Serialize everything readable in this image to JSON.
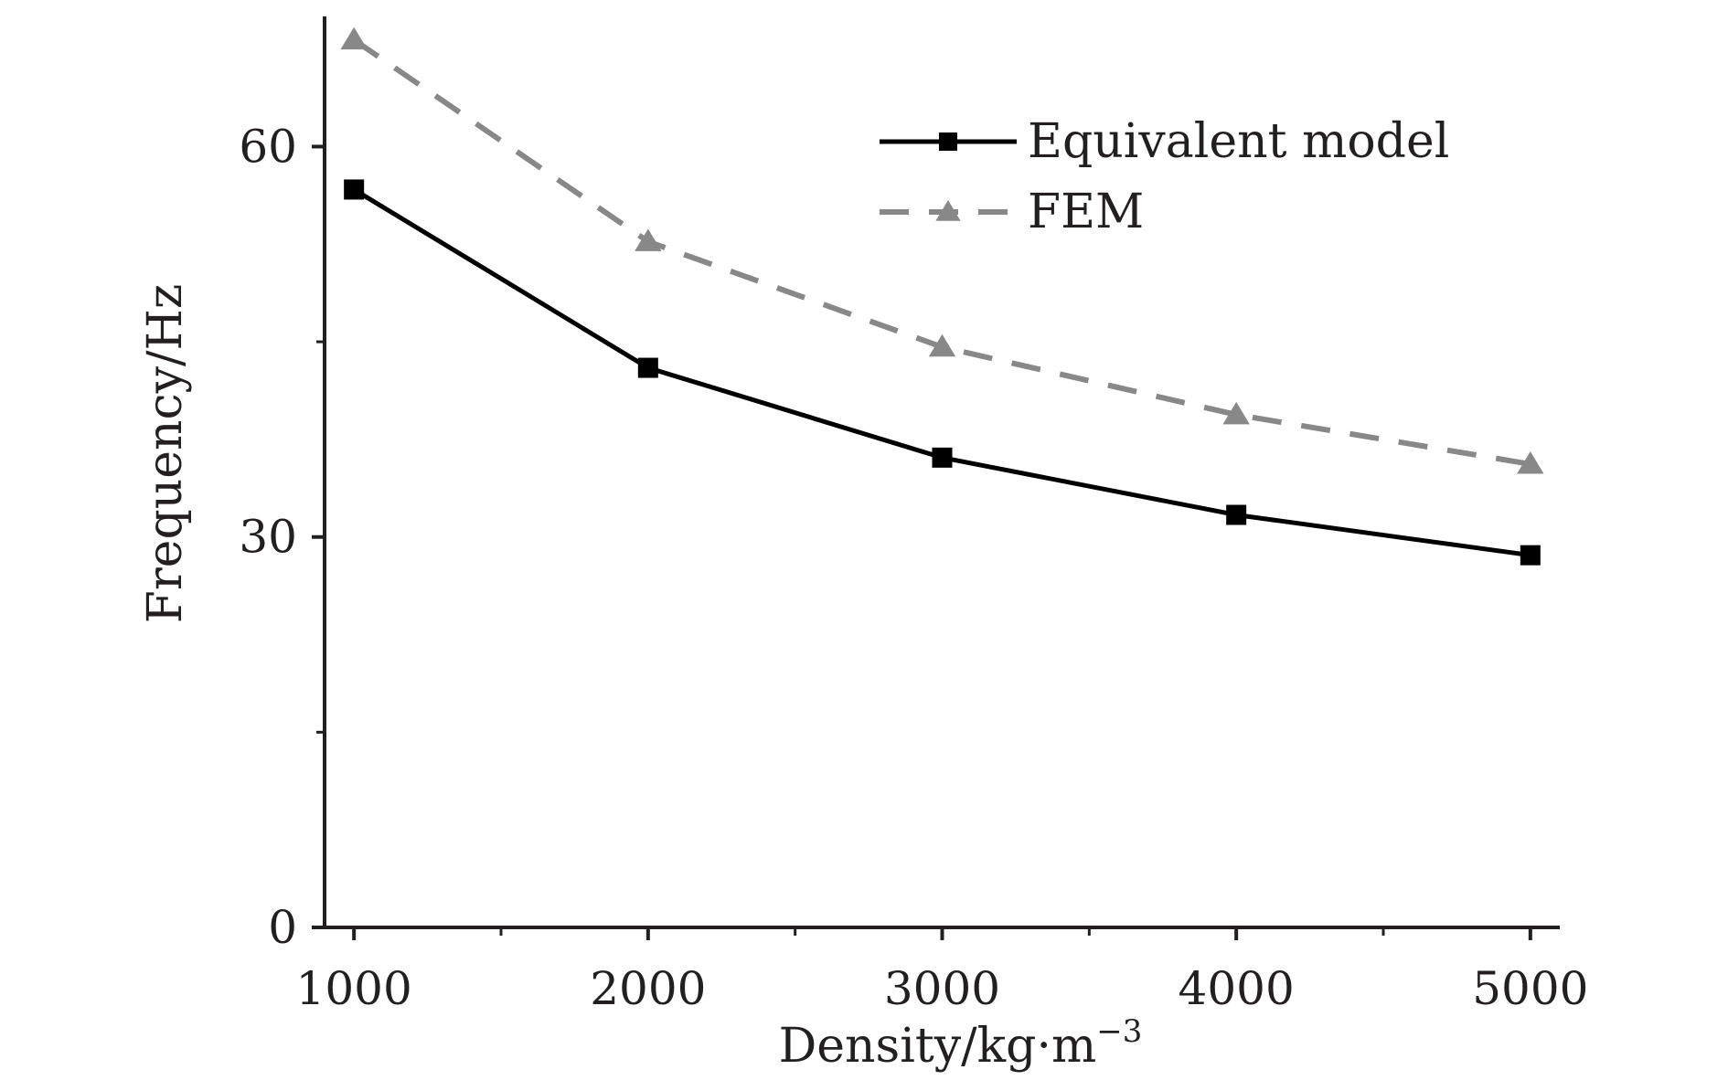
{
  "chart_data": {
    "type": "line",
    "x": [
      1000,
      2000,
      3000,
      4000,
      5000
    ],
    "xticks": [
      "1000",
      "2000",
      "3000",
      "4000",
      "5000"
    ],
    "yticks": [
      "0",
      "30",
      "60"
    ],
    "xlabel": "Density/kg·m",
    "xlabel_sup": "−3",
    "ylabel": "Frequency/Hz",
    "xlim": [
      900,
      5100
    ],
    "ylim": [
      0,
      70
    ],
    "grid": false,
    "legend_position": "top-right",
    "series": [
      {
        "name": "Equivalent model",
        "values": [
          56.7,
          43.0,
          36.1,
          31.7,
          28.6
        ],
        "color": "#000000",
        "line": "solid",
        "marker": "square"
      },
      {
        "name": "FEM",
        "values": [
          68.2,
          52.7,
          44.6,
          39.4,
          35.6
        ],
        "color": "#888888",
        "line": "dashed",
        "marker": "triangle"
      }
    ]
  }
}
